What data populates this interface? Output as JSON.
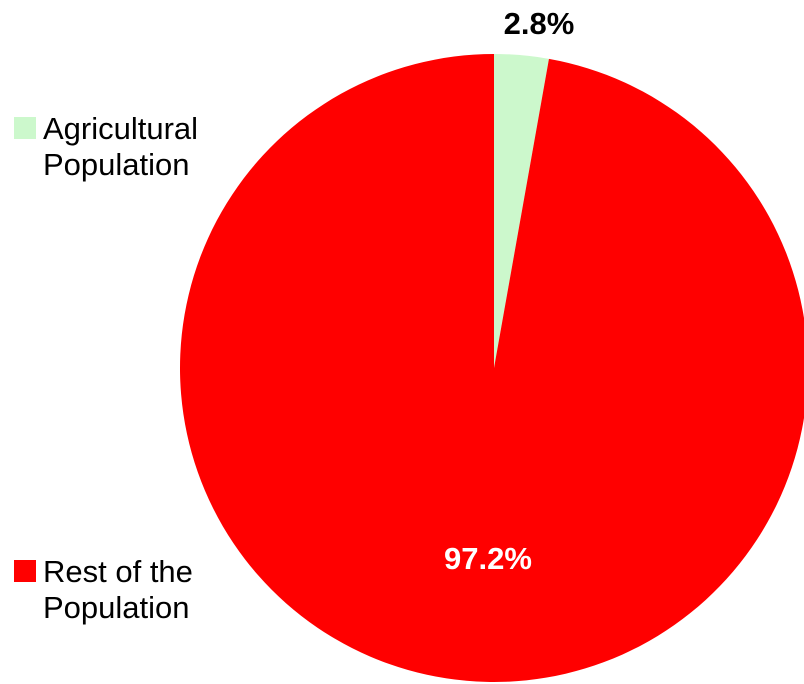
{
  "chart_data": {
    "type": "pie",
    "title": "",
    "legend_position": "left",
    "slices": [
      {
        "label_line1": "Agricultural",
        "label_line2": "Population",
        "value": 2.8,
        "data_label": "2.8%",
        "color": "#ccf8cc",
        "label_color": "#000000"
      },
      {
        "label_line1": "Rest of the",
        "label_line2": "Population",
        "value": 97.2,
        "data_label": "97.2%",
        "color": "#ff0000",
        "label_color": "#ffffff"
      }
    ]
  }
}
